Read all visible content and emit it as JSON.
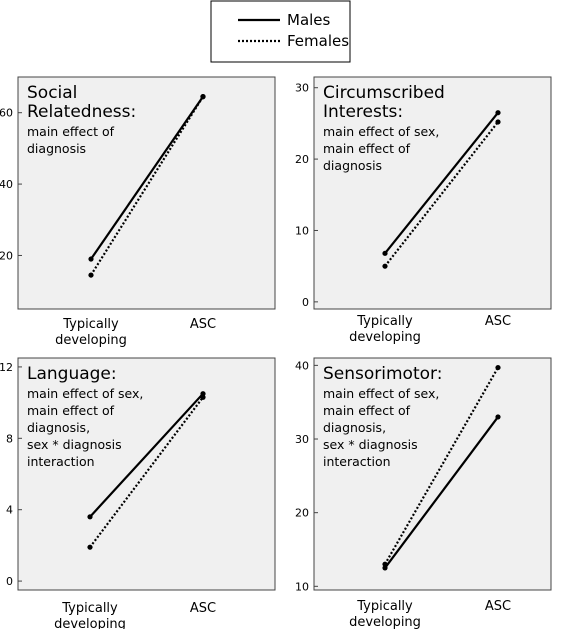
{
  "legend": {
    "entries": [
      {
        "label": "Males",
        "style": "solid"
      },
      {
        "label": "Females",
        "style": "dotted"
      }
    ]
  },
  "colors": {
    "line": "#000000",
    "panel_background": "#f0f0f0",
    "panel_border": "#444444"
  },
  "chart_data": [
    {
      "type": "line",
      "categories": [
        "Typically developing",
        "ASC"
      ],
      "category_lines": [
        [
          "Typically",
          "developing"
        ],
        [
          "ASC"
        ]
      ],
      "title_lines": [
        "Social",
        "Relatedness:"
      ],
      "subtitle_lines": [
        "main effect of",
        "diagnosis"
      ],
      "ylim": [
        5,
        70
      ],
      "yticks": [
        20,
        40,
        60
      ],
      "series": [
        {
          "name": "Males",
          "style": "solid",
          "values": [
            19,
            64.5
          ]
        },
        {
          "name": "Females",
          "style": "dotted",
          "values": [
            14.5,
            64.5
          ]
        }
      ]
    },
    {
      "type": "line",
      "categories": [
        "Typically developing",
        "ASC"
      ],
      "category_lines": [
        [
          "Typically",
          "developing"
        ],
        [
          "ASC"
        ]
      ],
      "title_lines": [
        "Circumscribed",
        "Interests:"
      ],
      "subtitle_lines": [
        "main effect of sex,",
        "main effect of",
        "diagnosis"
      ],
      "ylim": [
        -1,
        31.5
      ],
      "yticks": [
        0,
        10,
        20,
        30
      ],
      "series": [
        {
          "name": "Males",
          "style": "solid",
          "values": [
            6.8,
            26.5
          ]
        },
        {
          "name": "Females",
          "style": "dotted",
          "values": [
            5,
            25.2
          ]
        }
      ]
    },
    {
      "type": "line",
      "categories": [
        "Typically developing",
        "ASC"
      ],
      "category_lines": [
        [
          "Typically",
          "developing"
        ],
        [
          "ASC"
        ]
      ],
      "title_lines": [
        "Language:"
      ],
      "subtitle_lines": [
        "main effect of sex,",
        "main effect of",
        "diagnosis,",
        "sex * diagnosis",
        "interaction"
      ],
      "ylim": [
        -0.5,
        12.5
      ],
      "yticks": [
        0,
        4,
        8,
        12
      ],
      "series": [
        {
          "name": "Males",
          "style": "solid",
          "values": [
            3.6,
            10.5
          ]
        },
        {
          "name": "Females",
          "style": "dotted",
          "values": [
            1.9,
            10.3
          ]
        }
      ]
    },
    {
      "type": "line",
      "categories": [
        "Typically developing",
        "ASC"
      ],
      "category_lines": [
        [
          "Typically",
          "developing"
        ],
        [
          "ASC"
        ]
      ],
      "title_lines": [
        "Sensorimotor:"
      ],
      "subtitle_lines": [
        "main effect of sex,",
        "main effect of",
        "diagnosis,",
        "sex * diagnosis",
        "interaction"
      ],
      "ylim": [
        9.5,
        41
      ],
      "yticks": [
        10,
        20,
        30,
        40
      ],
      "series": [
        {
          "name": "Males",
          "style": "solid",
          "values": [
            12.5,
            33
          ]
        },
        {
          "name": "Females",
          "style": "dotted",
          "values": [
            13,
            39.7
          ]
        }
      ]
    }
  ]
}
